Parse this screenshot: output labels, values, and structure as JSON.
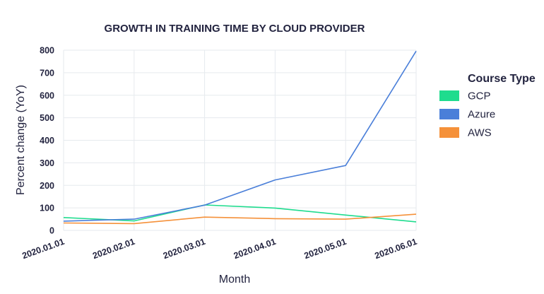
{
  "chart_data": {
    "type": "line",
    "title": "GROWTH IN TRAINING TIME BY CLOUD PROVIDER",
    "xlabel": "Month",
    "ylabel": "Percent change (YoY)",
    "categories": [
      "2020.01.01",
      "2020.02.01",
      "2020.03.01",
      "2020.04.01",
      "2020.05.01",
      "2020.06.01"
    ],
    "ylim": [
      0,
      800
    ],
    "yticks": [
      0,
      100,
      200,
      300,
      400,
      500,
      600,
      700,
      800
    ],
    "grid": true,
    "legend_title": "Course Type",
    "legend_position": "right",
    "series": [
      {
        "name": "GCP",
        "color": "#1fdc8e",
        "values": [
          57,
          42,
          113,
          99,
          68,
          38
        ]
      },
      {
        "name": "Azure",
        "color": "#4a7fd9",
        "values": [
          41,
          50,
          112,
          224,
          288,
          796
        ]
      },
      {
        "name": "AWS",
        "color": "#f5913a",
        "values": [
          33,
          30,
          59,
          52,
          50,
          72
        ]
      }
    ]
  }
}
